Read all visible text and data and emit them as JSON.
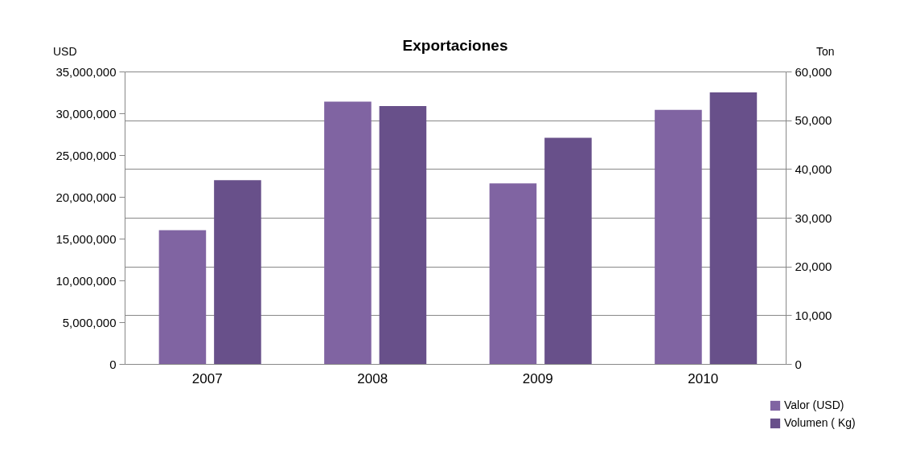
{
  "chart_data": {
    "type": "bar",
    "title": "Exportaciones",
    "ylabel": "USD",
    "y2label": "Ton",
    "categories": [
      "2007",
      "2008",
      "2009",
      "2010"
    ],
    "series": [
      {
        "name": "Valor (USD)",
        "color": "#8064a2",
        "values": [
          16000000,
          31400000,
          21600000,
          30400000
        ]
      },
      {
        "name": "Volumen ( Kg)",
        "color": "#68508a",
        "axis": "y2",
        "values": [
          37700,
          52900,
          46400,
          55700
        ]
      }
    ],
    "ylim": [
      0,
      35000000
    ],
    "yticks": [
      0,
      {
        "value": 5000000,
        "label": "5,000,000"
      },
      {
        "value": 10000000,
        "label": "10,000,000"
      },
      {
        "value": 15000000,
        "label": "15,000,000"
      },
      {
        "value": 20000000,
        "label": "20,000,000"
      },
      {
        "value": 25000000,
        "label": "25,000,000"
      },
      {
        "value": 30000000,
        "label": "30,000,000"
      },
      {
        "value": 35000000,
        "label": "35,000,000"
      }
    ],
    "y2lim": [
      0,
      60000
    ],
    "y2ticks": [
      0,
      {
        "value": 10000,
        "label": "10,000"
      },
      {
        "value": 20000,
        "label": "20,000"
      },
      {
        "value": 30000,
        "label": "30,000"
      },
      {
        "value": 40000,
        "label": "40,000"
      },
      {
        "value": 50000,
        "label": "50,000"
      },
      {
        "value": 60000,
        "label": "60,000"
      }
    ],
    "grid": true,
    "legend": "bottom right"
  }
}
